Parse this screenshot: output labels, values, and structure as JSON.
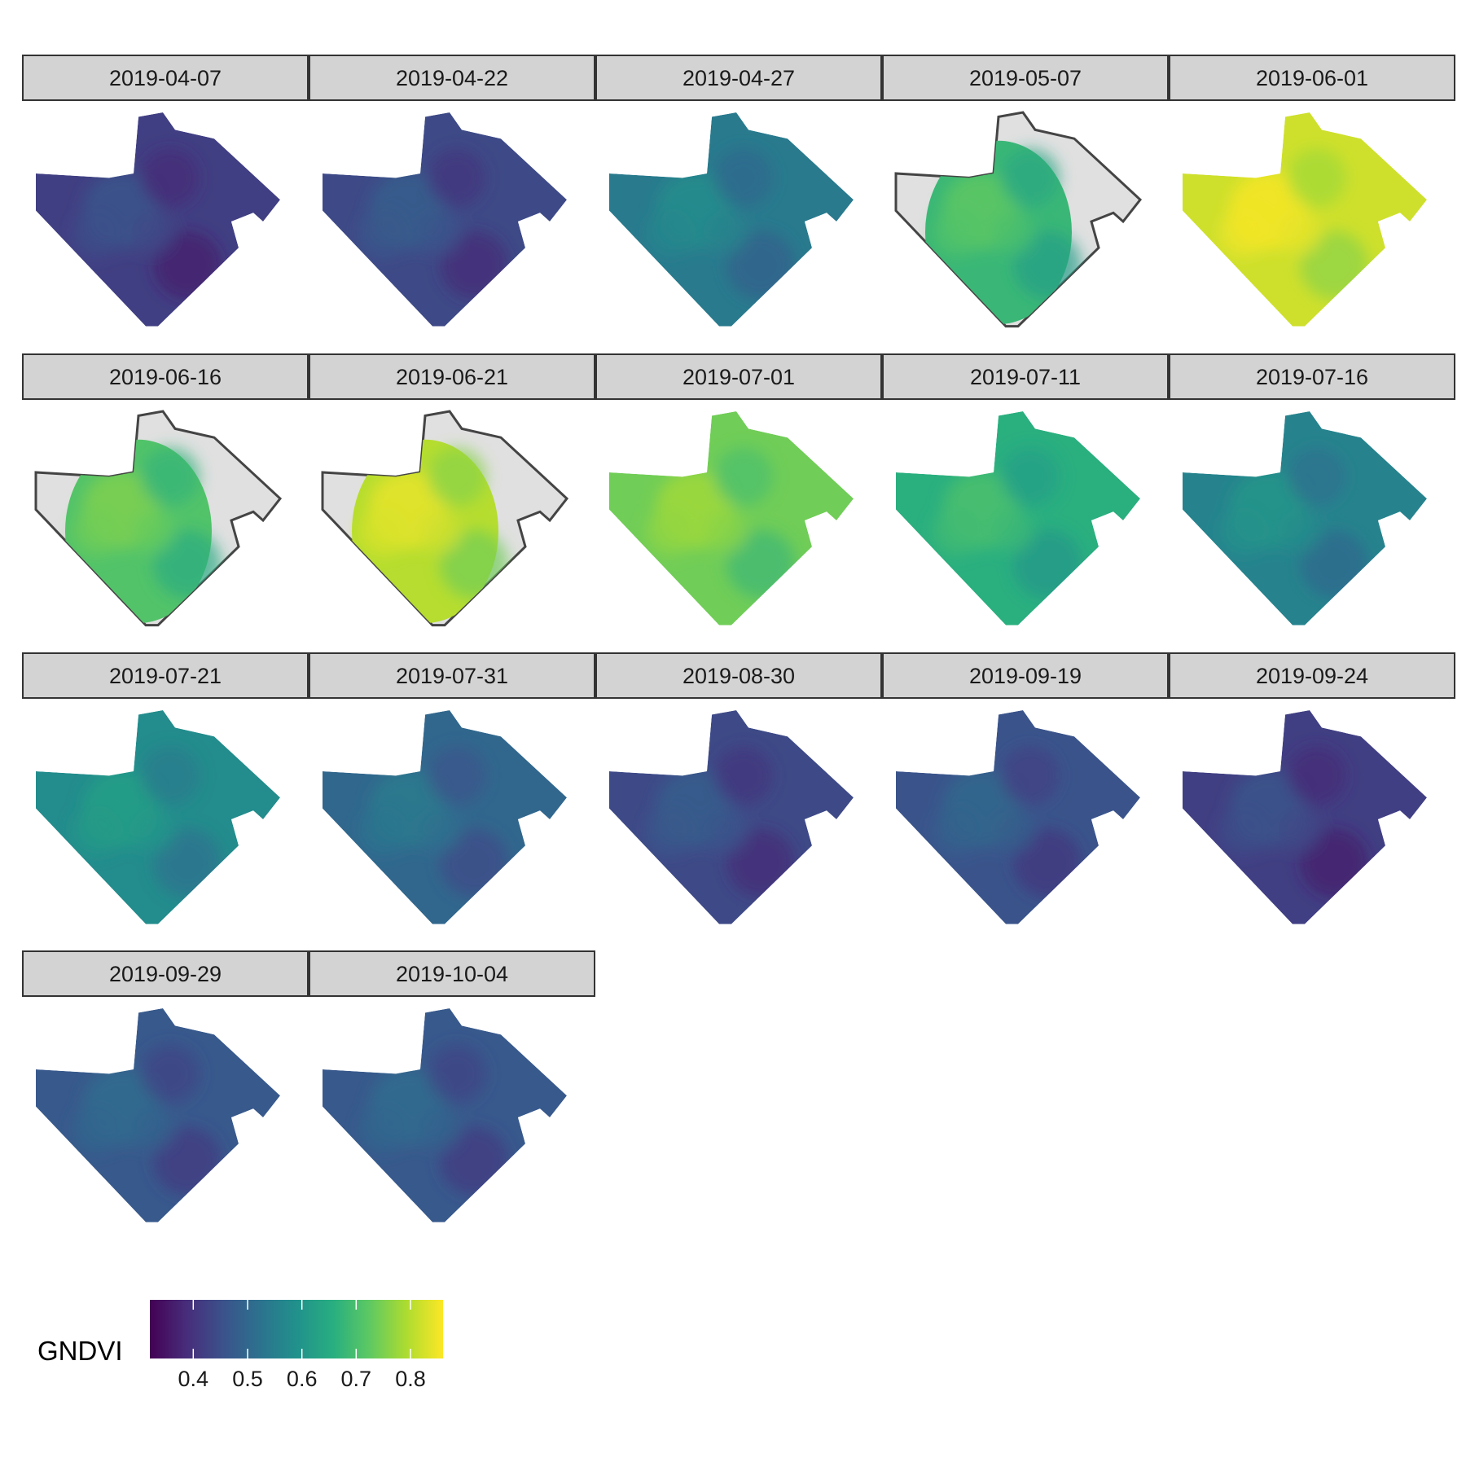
{
  "chart_data": {
    "type": "heatmap",
    "title": "",
    "variable": "GNDVI",
    "panels": [
      {
        "date": "2019-04-07",
        "mean_gndvi": 0.42,
        "coverage": "full"
      },
      {
        "date": "2019-04-22",
        "mean_gndvi": 0.44,
        "coverage": "full"
      },
      {
        "date": "2019-04-27",
        "mean_gndvi": 0.54,
        "coverage": "full"
      },
      {
        "date": "2019-05-07",
        "mean_gndvi": 0.68,
        "coverage": "partial"
      },
      {
        "date": "2019-06-01",
        "mean_gndvi": 0.82,
        "coverage": "full"
      },
      {
        "date": "2019-06-16",
        "mean_gndvi": 0.71,
        "coverage": "partial"
      },
      {
        "date": "2019-06-21",
        "mean_gndvi": 0.8,
        "coverage": "partial"
      },
      {
        "date": "2019-07-01",
        "mean_gndvi": 0.74,
        "coverage": "full"
      },
      {
        "date": "2019-07-11",
        "mean_gndvi": 0.66,
        "coverage": "full"
      },
      {
        "date": "2019-07-16",
        "mean_gndvi": 0.56,
        "coverage": "full"
      },
      {
        "date": "2019-07-21",
        "mean_gndvi": 0.58,
        "coverage": "full"
      },
      {
        "date": "2019-07-31",
        "mean_gndvi": 0.5,
        "coverage": "full"
      },
      {
        "date": "2019-08-30",
        "mean_gndvi": 0.44,
        "coverage": "full"
      },
      {
        "date": "2019-09-19",
        "mean_gndvi": 0.46,
        "coverage": "full"
      },
      {
        "date": "2019-09-24",
        "mean_gndvi": 0.42,
        "coverage": "full"
      },
      {
        "date": "2019-09-29",
        "mean_gndvi": 0.47,
        "coverage": "full"
      },
      {
        "date": "2019-10-04",
        "mean_gndvi": 0.47,
        "coverage": "full"
      }
    ],
    "colorbar": {
      "title": "GNDVI",
      "colormap": "viridis",
      "min": 0.32,
      "max": 0.86,
      "ticks": [
        0.4,
        0.5,
        0.6,
        0.7,
        0.8
      ],
      "tick_labels": [
        "0.4",
        "0.5",
        "0.6",
        "0.7",
        "0.8"
      ]
    },
    "colors": {
      "strip_background": "#d3d3d3",
      "strip_border": "#333333",
      "missing_area": "#e0e0e0",
      "outline": "#444444"
    }
  }
}
